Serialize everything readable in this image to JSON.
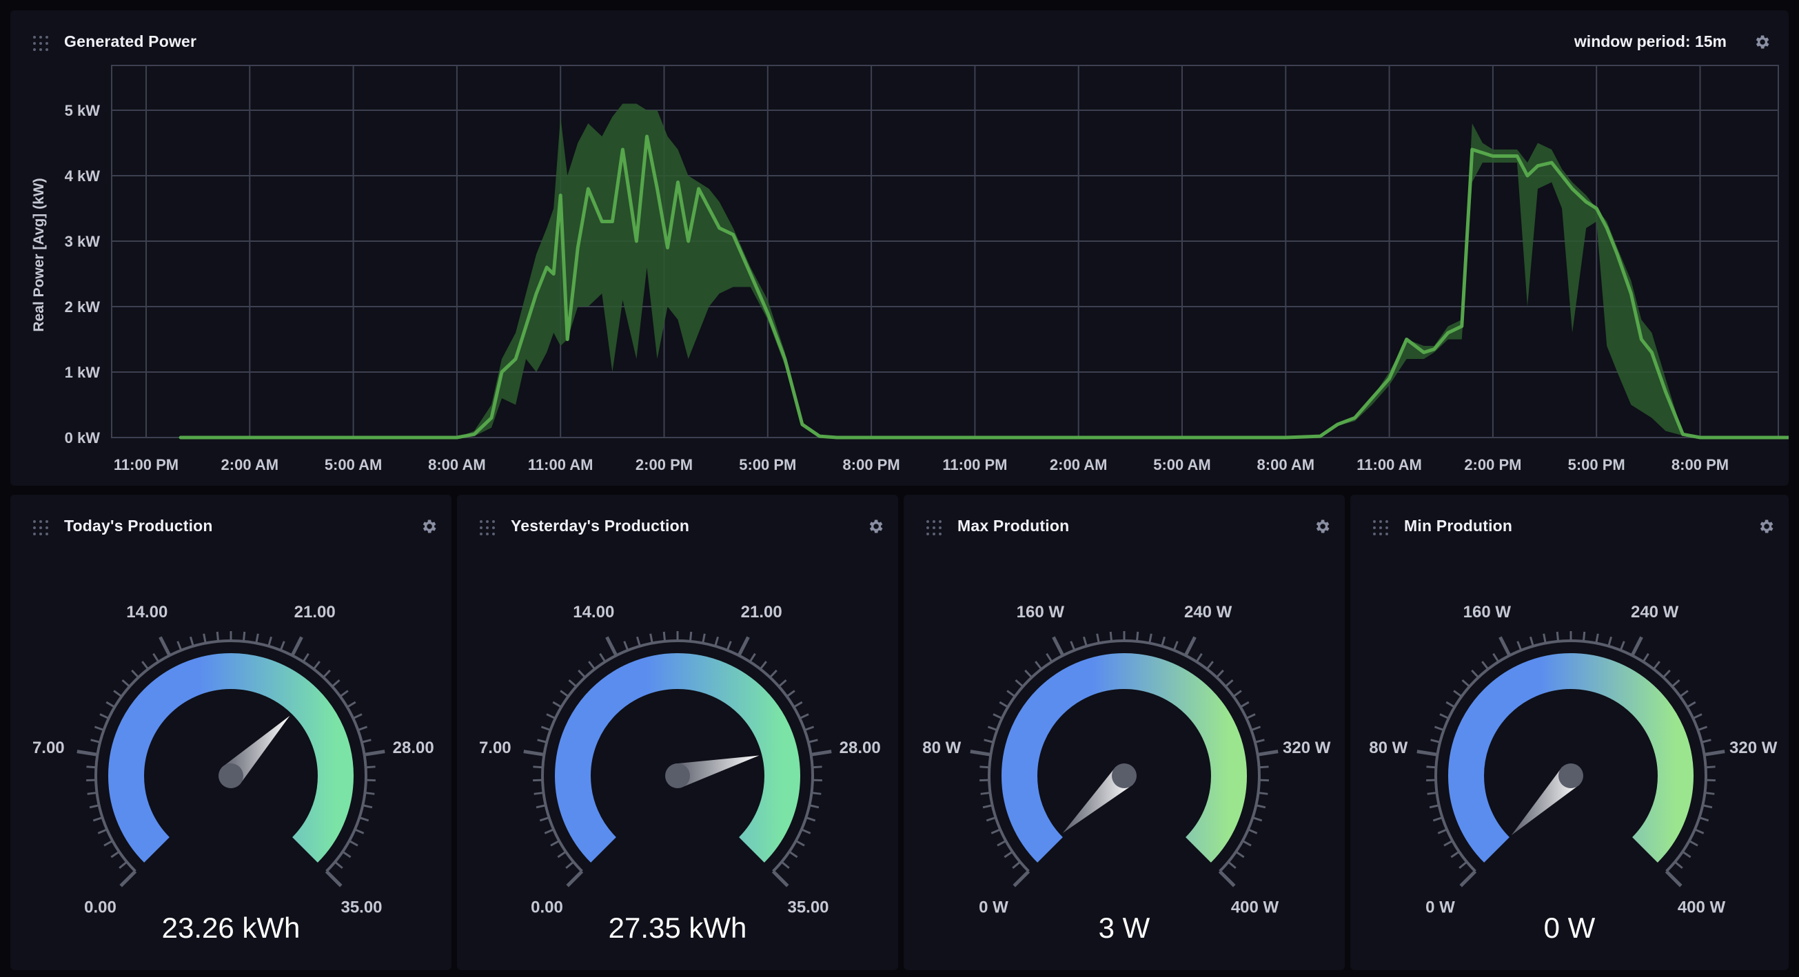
{
  "colors": {
    "background": "#07070c",
    "panel": "#0f1019",
    "line": "#56a64b",
    "band": "#2c5a2e",
    "grid": "#3d4050",
    "gauge_low": "#5b8def",
    "gauge_high": "#7be3a6",
    "gauge_high_w": "#9be58f"
  },
  "cells": {
    "generated_power": {
      "title": "Generated Power",
      "window_period": "window period: 15m"
    },
    "today": {
      "title": "Today's Production",
      "value": "23.26 kWh"
    },
    "yesterday": {
      "title": "Yesterday's Production",
      "value": "27.35 kWh"
    },
    "max": {
      "title": "Max Prodution",
      "value": "3 W"
    },
    "min": {
      "title": "Min Prodution",
      "value": "0 W"
    }
  },
  "icons": {
    "drag": "drag-handle-icon",
    "gear": "gear-icon"
  },
  "chart_data": {
    "type": "line",
    "title": "Generated Power",
    "ylabel": "Real Power [Avg] (kW)",
    "ylim": [
      0,
      5.6
    ],
    "yticks": [
      "0 kW",
      "1 kW",
      "2 kW",
      "3 kW",
      "4 kW",
      "5 kW"
    ],
    "xticks": [
      "11:00 PM",
      "2:00 AM",
      "5:00 AM",
      "8:00 AM",
      "11:00 AM",
      "2:00 PM",
      "5:00 PM",
      "8:00 PM",
      "11:00 PM",
      "2:00 AM",
      "5:00 AM",
      "8:00 AM",
      "11:00 AM",
      "2:00 PM",
      "5:00 PM",
      "8:00 PM"
    ],
    "grid": true,
    "x_hours": [
      0,
      8,
      8.5,
      9,
      9.3,
      9.7,
      10,
      10.3,
      10.6,
      10.8,
      11,
      11.2,
      11.5,
      11.8,
      12.2,
      12.5,
      12.8,
      13.2,
      13.5,
      13.8,
      14.1,
      14.4,
      14.7,
      15,
      15.3,
      15.6,
      16,
      16.5,
      17,
      17.5,
      18,
      18.5,
      19,
      32,
      33,
      33.5,
      34,
      34.5,
      35,
      35.5,
      36,
      36.3,
      36.7,
      37.1,
      37.4,
      37.7,
      38,
      38.3,
      38.7,
      39,
      39.3,
      39.7,
      40,
      40.3,
      40.7,
      41,
      41.3,
      41.6,
      42,
      42.3,
      42.6,
      43,
      43.5,
      44,
      45.5
    ],
    "series": [
      {
        "name": "mean",
        "values": [
          0,
          0,
          0.05,
          0.3,
          1.0,
          1.2,
          1.7,
          2.2,
          2.6,
          2.5,
          3.7,
          1.5,
          2.9,
          3.8,
          3.3,
          3.3,
          4.4,
          3.0,
          4.6,
          3.8,
          2.9,
          3.9,
          3.0,
          3.8,
          3.5,
          3.2,
          3.1,
          2.5,
          1.9,
          1.2,
          0.2,
          0.02,
          0,
          0,
          0.02,
          0.2,
          0.3,
          0.6,
          0.9,
          1.5,
          1.3,
          1.35,
          1.6,
          1.7,
          4.4,
          4.35,
          4.3,
          4.3,
          4.3,
          4.0,
          4.15,
          4.2,
          4.0,
          3.8,
          3.6,
          3.5,
          3.2,
          2.8,
          2.2,
          1.5,
          1.3,
          0.7,
          0.05,
          0,
          0
        ]
      }
    ],
    "band_upper": [
      0,
      0,
      0.1,
      0.5,
      1.2,
      1.6,
      2.2,
      2.8,
      3.2,
      3.5,
      4.9,
      4.0,
      4.5,
      4.8,
      4.6,
      4.9,
      5.1,
      5.1,
      5.0,
      5.0,
      4.6,
      4.4,
      4.0,
      3.9,
      3.8,
      3.6,
      3.2,
      2.6,
      2.1,
      1.3,
      0.2,
      0.02,
      0,
      0,
      0.03,
      0.2,
      0.3,
      0.6,
      1.0,
      1.5,
      1.4,
      1.4,
      1.7,
      1.8,
      4.8,
      4.5,
      4.4,
      4.4,
      4.4,
      4.2,
      4.5,
      4.4,
      4.1,
      3.9,
      3.7,
      3.5,
      3.3,
      2.9,
      2.4,
      1.8,
      1.6,
      0.9,
      0.05,
      0,
      0
    ],
    "band_lower": [
      0,
      0,
      0.02,
      0.15,
      0.6,
      0.5,
      1.2,
      1.0,
      1.3,
      1.6,
      1.4,
      1.5,
      2.0,
      2.0,
      2.2,
      1.0,
      2.1,
      1.2,
      2.6,
      1.2,
      2.0,
      1.8,
      1.2,
      1.6,
      2.0,
      2.2,
      2.3,
      2.3,
      1.8,
      1.1,
      0.18,
      0.01,
      0,
      0,
      0.01,
      0.18,
      0.25,
      0.5,
      0.8,
      1.2,
      1.2,
      1.3,
      1.5,
      1.5,
      3.9,
      4.2,
      4.2,
      4.2,
      4.2,
      2.0,
      3.8,
      3.9,
      3.5,
      1.6,
      3.2,
      3.3,
      1.4,
      1.0,
      0.5,
      0.4,
      0.3,
      0.1,
      0.03,
      0,
      0
    ]
  },
  "gauges": [
    {
      "key": "today",
      "labels": [
        "0.00",
        "7.00",
        "14.00",
        "21.00",
        "28.00",
        "35.00"
      ],
      "min": 0,
      "max": 35,
      "needle": 23.26,
      "end_color": "#7be3a6"
    },
    {
      "key": "yesterday",
      "labels": [
        "0.00",
        "7.00",
        "14.00",
        "21.00",
        "28.00",
        "35.00"
      ],
      "min": 0,
      "max": 35,
      "needle": 27.35,
      "end_color": "#7be3a6"
    },
    {
      "key": "max",
      "labels": [
        "0 W",
        "80 W",
        "160 W",
        "240 W",
        "320 W",
        "400 W"
      ],
      "min": 0,
      "max": 400,
      "needle": 3,
      "end_color": "#9be58f"
    },
    {
      "key": "min",
      "labels": [
        "0 W",
        "80 W",
        "160 W",
        "240 W",
        "320 W",
        "400 W"
      ],
      "min": 0,
      "max": 400,
      "needle": 0,
      "end_color": "#9be58f"
    }
  ]
}
